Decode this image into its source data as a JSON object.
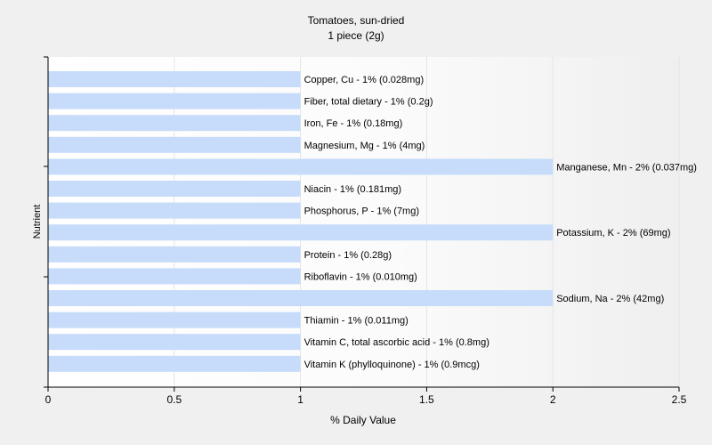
{
  "chart_data": {
    "type": "bar",
    "orientation": "horizontal",
    "title": "Tomatoes, sun-dried",
    "subtitle": "1 piece (2g)",
    "xlabel": "% Daily Value",
    "ylabel": "Nutrient",
    "xlim": [
      0,
      2.5
    ],
    "xticks": [
      "0",
      "0.5",
      "1",
      "1.5",
      "2",
      "2.5"
    ],
    "grid": true,
    "bar_color": "#c6dcfa",
    "categories": [
      "Copper, Cu",
      "Fiber, total dietary",
      "Iron, Fe",
      "Magnesium, Mg",
      "Manganese, Mn",
      "Niacin",
      "Phosphorus, P",
      "Potassium, K",
      "Protein",
      "Riboflavin",
      "Sodium, Na",
      "Thiamin",
      "Vitamin C, total ascorbic acid",
      "Vitamin K (phylloquinone)"
    ],
    "values": [
      1,
      1,
      1,
      1,
      2,
      1,
      1,
      2,
      1,
      1,
      2,
      1,
      1,
      1
    ],
    "labels": [
      "Copper, Cu - 1% (0.028mg)",
      "Fiber, total dietary - 1% (0.2g)",
      "Iron, Fe - 1% (0.18mg)",
      "Magnesium, Mg - 1% (4mg)",
      "Manganese, Mn - 2% (0.037mg)",
      "Niacin - 1% (0.181mg)",
      "Phosphorus, P - 1% (7mg)",
      "Potassium, K - 2% (69mg)",
      "Protein - 1% (0.28g)",
      "Riboflavin - 1% (0.010mg)",
      "Sodium, Na - 2% (42mg)",
      "Thiamin - 1% (0.011mg)",
      "Vitamin C, total ascorbic acid - 1% (0.8mg)",
      "Vitamin K (phylloquinone) - 1% (0.9mcg)"
    ]
  }
}
